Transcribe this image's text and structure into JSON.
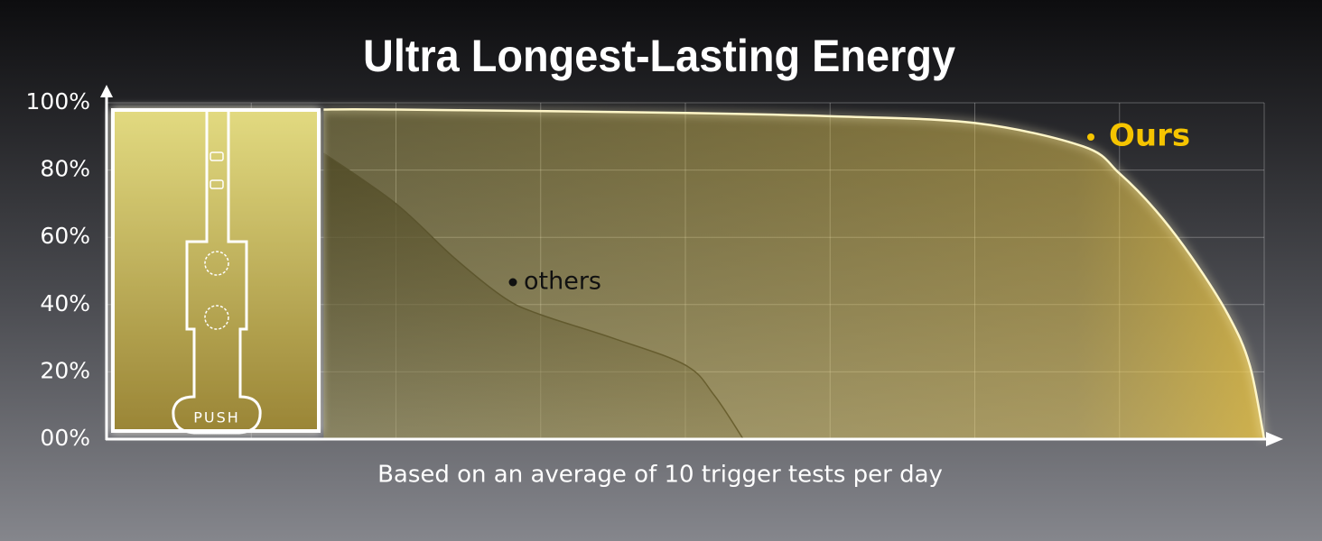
{
  "chart_data": {
    "type": "area",
    "title": "Ultra Longest-Lasting Energy",
    "x_label": "Based on an average of 10 trigger tests per day",
    "annotation": "PUSH",
    "xlim": [
      0,
      8
    ],
    "ylim": [
      0,
      100
    ],
    "yticks": [
      {
        "value": 0,
        "label": "00%"
      },
      {
        "value": 20,
        "label": "20%"
      },
      {
        "value": 40,
        "label": "40%"
      },
      {
        "value": 60,
        "label": "60%"
      },
      {
        "value": 80,
        "label": "80%"
      },
      {
        "value": 100,
        "label": "100%"
      }
    ],
    "grid": true,
    "series": [
      {
        "name": "Ours",
        "color": "#f5c400",
        "x": [
          1.5,
          2,
          4,
          5,
          6,
          6.75,
          7,
          7.25,
          7.5,
          7.75,
          7.9,
          8
        ],
        "values": [
          98,
          98,
          97,
          96,
          94,
          87,
          79,
          68,
          54,
          37,
          22,
          0
        ]
      },
      {
        "name": "others",
        "color": "#111111",
        "x": [
          1.5,
          2,
          2.4,
          2.75,
          3,
          3.5,
          4,
          4.2,
          4.4
        ],
        "values": [
          85,
          70,
          54,
          42,
          37,
          30,
          22,
          13,
          0
        ]
      }
    ]
  }
}
